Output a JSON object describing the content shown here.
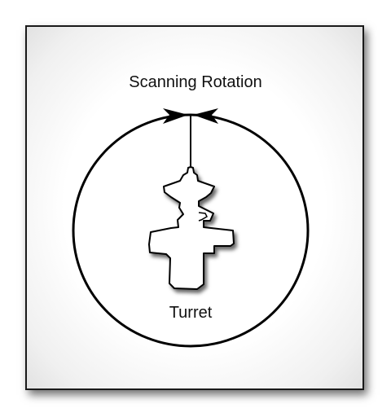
{
  "diagram": {
    "title": "Scanning Rotation",
    "turret_label": "Turret"
  }
}
